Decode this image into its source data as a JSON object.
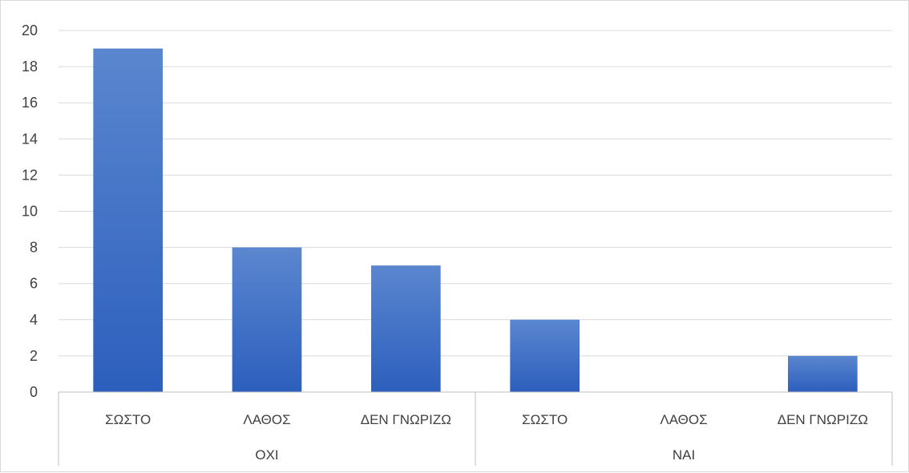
{
  "chart_data": {
    "type": "bar",
    "title": "",
    "xlabel": "",
    "ylabel": "",
    "ylim": [
      0,
      20
    ],
    "yticks": [
      0,
      2,
      4,
      6,
      8,
      10,
      12,
      14,
      16,
      18,
      20
    ],
    "grid": true,
    "legend": "none",
    "groups": [
      {
        "label": "ΟΧΙ",
        "categories": [
          "ΣΩΣΤΟ",
          "ΛΑΘΟΣ",
          "ΔΕΝ ΓΝΩΡΙΖΩ"
        ],
        "values": [
          19,
          8,
          7
        ]
      },
      {
        "label": "ΝΑΙ",
        "categories": [
          "ΣΩΣΤΟ",
          "ΛΑΘΟΣ",
          "ΔΕΝ ΓΝΩΡΙΖΩ"
        ],
        "values": [
          4,
          0,
          2
        ]
      }
    ],
    "colors": {
      "bar_top": "#5b86cf",
      "bar_bottom": "#2c5fbd",
      "grid": "#d9d9d9",
      "axis": "#bfbfbf",
      "text": "#404040"
    }
  }
}
